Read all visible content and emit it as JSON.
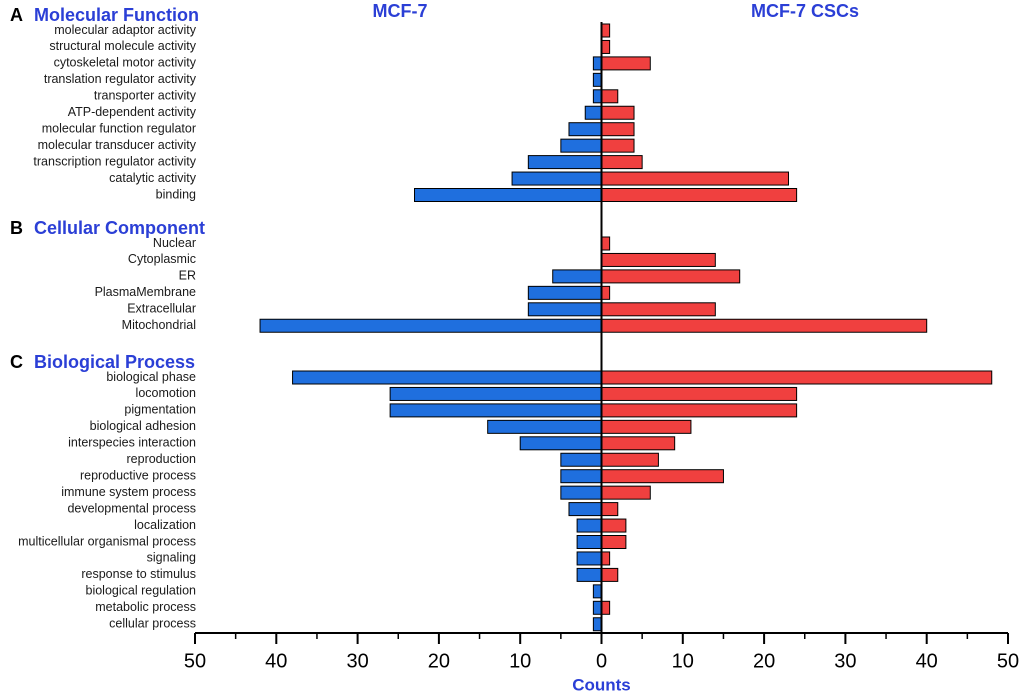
{
  "chart_data": {
    "type": "bar",
    "orientation": "horizontal-diverging",
    "series": [
      {
        "name": "MCF-7",
        "color": "#1f6fde",
        "direction": "left"
      },
      {
        "name": "MCF-7 CSCs",
        "color": "#f0403f",
        "direction": "right"
      }
    ],
    "xlabel": "Counts",
    "xlim": [
      -50,
      50
    ],
    "ticks": [
      -50,
      -40,
      -30,
      -20,
      -10,
      0,
      10,
      20,
      30,
      40,
      50
    ],
    "tick_labels": [
      "50",
      "40",
      "30",
      "20",
      "10",
      "0",
      "10",
      "20",
      "30",
      "40",
      "50"
    ],
    "title_color": "#2b3fd6",
    "panels": [
      {
        "letter": "A",
        "title": "Molecular Function",
        "categories": [
          "molecular adaptor activity",
          "structural molecule activity",
          "cytoskeletal motor activity",
          "translation regulator activity",
          "transporter activity",
          "ATP-dependent activity",
          "molecular function regulator",
          "molecular transducer activity",
          "transcription regulator activity",
          "catalytic activity",
          "binding"
        ],
        "mcf7": [
          0,
          0,
          1,
          1,
          1,
          2,
          4,
          5,
          9,
          11,
          23
        ],
        "cscs": [
          1,
          1,
          6,
          0,
          2,
          4,
          4,
          4,
          5,
          23,
          24
        ]
      },
      {
        "letter": "B",
        "title": "Cellular Component",
        "categories": [
          "Nuclear",
          "Cytoplasmic",
          "ER",
          "PlasmaMembrane",
          "Extracellular",
          "Mitochondrial"
        ],
        "mcf7": [
          0,
          0,
          6,
          9,
          9,
          42
        ],
        "cscs": [
          1,
          14,
          17,
          1,
          14,
          40
        ]
      },
      {
        "letter": "C",
        "title": "Biological Process",
        "categories": [
          "biological phase",
          "locomotion",
          "pigmentation",
          "biological adhesion",
          "interspecies interaction",
          "reproduction",
          "reproductive process",
          "immune system process",
          "developmental process",
          "localization",
          "multicellular organismal process",
          "signaling",
          "response to stimulus",
          "biological regulation",
          "metabolic process",
          "cellular process"
        ],
        "mcf7": [
          38,
          26,
          26,
          14,
          10,
          5,
          5,
          5,
          4,
          3,
          3,
          3,
          3,
          1,
          1,
          1
        ],
        "cscs": [
          48,
          24,
          24,
          11,
          9,
          7,
          15,
          6,
          2,
          3,
          3,
          1,
          2,
          0,
          1,
          0
        ]
      }
    ]
  }
}
